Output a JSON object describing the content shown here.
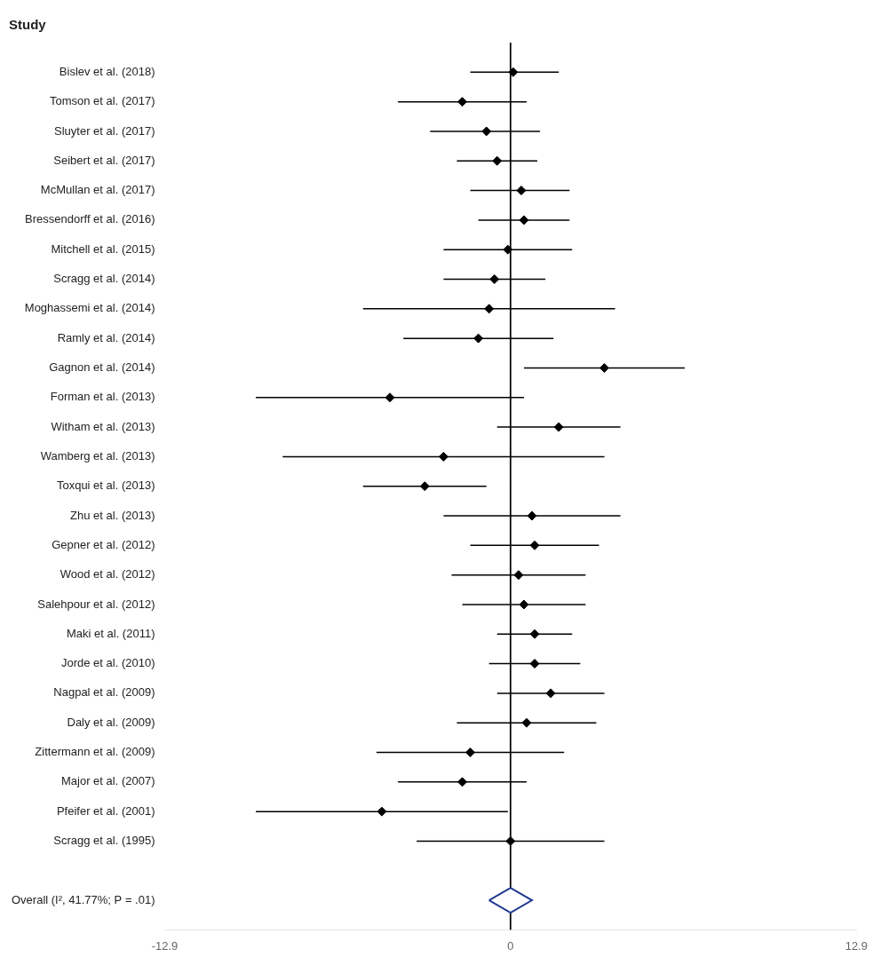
{
  "chart_data": {
    "type": "forest",
    "header": "Study",
    "categories": [
      "Bislev et al. (2018)",
      "Tomson et al. (2017)",
      "Sluyter et al. (2017)",
      "Seibert et al. (2017)",
      "McMullan et al. (2017)",
      "Bressendorff et al. (2016)",
      "Mitchell et al. (2015)",
      "Scragg et al. (2014)",
      "Moghassemi et al. (2014)",
      "Ramly et al. (2014)",
      "Gagnon et al. (2014)",
      "Forman et al. (2013)",
      "Witham et al. (2013)",
      "Wamberg et al. (2013)",
      "Toxqui et al. (2013)",
      "Zhu et al. (2013)",
      "Gepner et al. (2012)",
      "Wood et al. (2012)",
      "Salehpour et al. (2012)",
      "Maki et al. (2011)",
      "Jorde et al. (2010)",
      "Nagpal et al. (2009)",
      "Daly et al. (2009)",
      "Zittermann et al. (2009)",
      "Major et al. (2007)",
      "Pfeifer et al. (2001)",
      "Scragg et al. (1995)"
    ],
    "values": [
      0.1,
      -1.8,
      -0.9,
      -0.5,
      0.4,
      0.5,
      -0.1,
      -0.6,
      -0.8,
      -1.2,
      3.5,
      -4.5,
      1.8,
      -2.5,
      -3.2,
      0.8,
      0.9,
      0.3,
      0.5,
      0.9,
      0.9,
      1.5,
      0.6,
      -1.5,
      -1.8,
      -4.8,
      0.0
    ],
    "ci_lo": [
      -1.5,
      -4.2,
      -3.0,
      -2.0,
      -1.5,
      -1.2,
      -2.5,
      -2.5,
      -5.5,
      -4.0,
      0.5,
      -9.5,
      -0.5,
      -8.5,
      -5.5,
      -2.5,
      -1.5,
      -2.2,
      -1.8,
      -0.5,
      -0.8,
      -0.5,
      -2.0,
      -5.0,
      -4.2,
      -9.5,
      -3.5
    ],
    "ci_hi": [
      1.8,
      0.6,
      1.1,
      1.0,
      2.2,
      2.2,
      2.3,
      1.3,
      3.9,
      1.6,
      6.5,
      0.5,
      4.1,
      3.5,
      -0.9,
      4.1,
      3.3,
      2.8,
      2.8,
      2.3,
      2.6,
      3.5,
      3.2,
      2.0,
      0.6,
      -0.1,
      3.5
    ],
    "color": "#000000",
    "overall": {
      "label": "Overall (I², 41.77%; P = .01)",
      "value": 0.0,
      "ci_lo": -0.8,
      "ci_hi": 0.8,
      "color": "#1F3A8F"
    },
    "reference_line": 0,
    "xlim": [
      -12.9,
      12.9
    ],
    "xticks": [
      -12.9,
      0,
      12.9
    ],
    "grid": false
  }
}
